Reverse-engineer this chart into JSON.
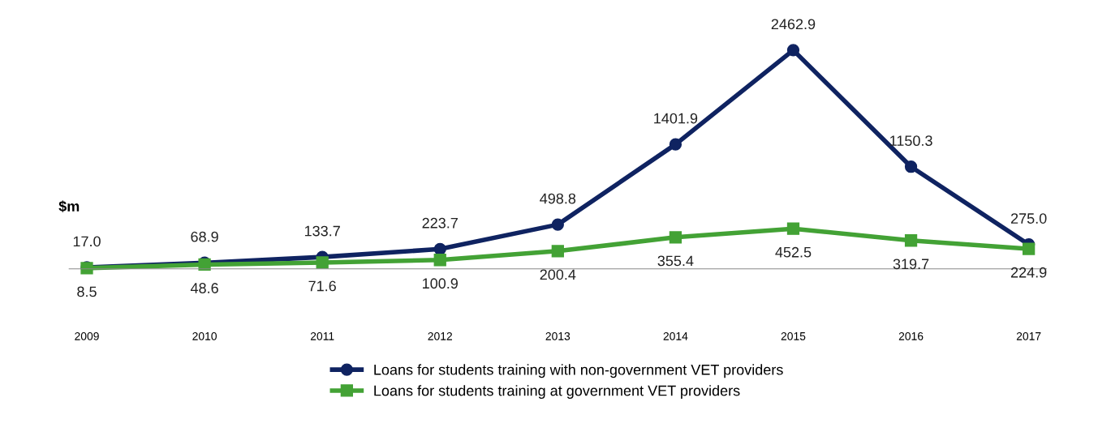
{
  "chart_data": {
    "type": "line",
    "ylabel": "$m",
    "categories": [
      "2009",
      "2010",
      "2011",
      "2012",
      "2013",
      "2014",
      "2015",
      "2016",
      "2017"
    ],
    "series": [
      {
        "name": "Loans for students training with non-government VET providers",
        "color": "#0f2361",
        "marker": "circle",
        "values": [
          17.0,
          68.9,
          133.7,
          223.7,
          498.8,
          1401.9,
          2462.9,
          1150.3,
          275.0
        ],
        "value_labels": [
          "17.0",
          "68.9",
          "133.7",
          "223.7",
          "498.8",
          "1401.9",
          "2462.9",
          "1150.3",
          "275.0"
        ]
      },
      {
        "name": "Loans for students training at government VET providers",
        "color": "#43a235",
        "marker": "square",
        "values": [
          8.5,
          48.6,
          71.6,
          100.9,
          200.4,
          355.4,
          452.5,
          319.7,
          224.9
        ],
        "value_labels": [
          "8.5",
          "48.6",
          "71.6",
          "100.9",
          "200.4",
          "355.4",
          "452.5",
          "319.7",
          "224.9"
        ]
      }
    ],
    "legend": "bottom",
    "tick_labels": "x",
    "grid": false,
    "line_style": "solid"
  }
}
